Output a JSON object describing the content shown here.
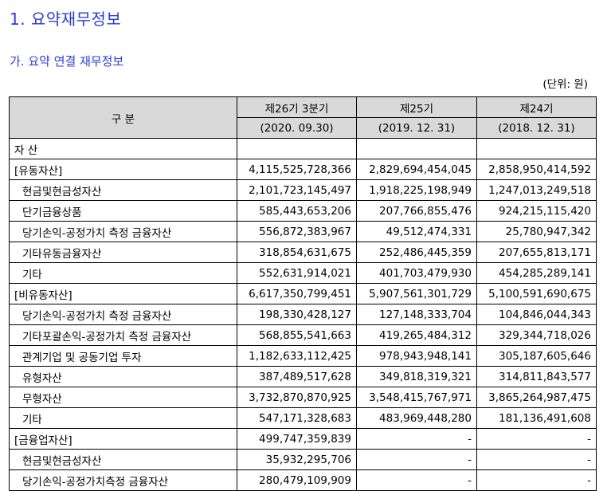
{
  "heading": "1. 요약재무정보",
  "subheading": "가. 요약 연결 재무정보",
  "unit": "(단위: 원)",
  "table": {
    "header_label": "구 분",
    "periods": [
      {
        "name": "제26기 3분기",
        "date": "(2020. 09.30)"
      },
      {
        "name": "제25기",
        "date": "(2019. 12. 31)"
      },
      {
        "name": "제24기",
        "date": "(2018. 12. 31)"
      }
    ],
    "rows": [
      {
        "label": "자 산",
        "values": [
          "",
          "",
          ""
        ],
        "level": 0
      },
      {
        "label": "[유동자산]",
        "values": [
          "4,115,525,728,366",
          "2,829,694,454,045",
          "2,858,950,414,592"
        ],
        "level": 0
      },
      {
        "label": "현금및현금성자산",
        "values": [
          "2,101,723,145,497",
          "1,918,225,198,949",
          "1,247,013,249,518"
        ],
        "level": 1
      },
      {
        "label": "단기금융상품",
        "values": [
          "585,443,653,206",
          "207,766,855,476",
          "924,215,115,420"
        ],
        "level": 1
      },
      {
        "label": "당기손익-공정가치 측정 금융자산",
        "values": [
          "556,872,383,967",
          "49,512,474,331",
          "25,780,947,342"
        ],
        "level": 1
      },
      {
        "label": "기타유동금융자산",
        "values": [
          "318,854,631,675",
          "252,486,445,359",
          "207,655,813,171"
        ],
        "level": 1
      },
      {
        "label": "기타",
        "values": [
          "552,631,914,021",
          "401,703,479,930",
          "454,285,289,141"
        ],
        "level": 1
      },
      {
        "label": "[비유동자산]",
        "values": [
          "6,617,350,799,451",
          "5,907,561,301,729",
          "5,100,591,690,675"
        ],
        "level": 0
      },
      {
        "label": "당기손익-공정가치 측정 금융자산",
        "values": [
          "198,330,428,127",
          "127,148,333,704",
          "104,846,044,343"
        ],
        "level": 1
      },
      {
        "label": "기타포괄손익-공정가치 측정 금융자산",
        "values": [
          "568,855,541,663",
          "419,265,484,312",
          "329,344,718,026"
        ],
        "level": 1
      },
      {
        "label": "관계기업 및 공동기업 투자",
        "values": [
          "1,182,633,112,425",
          "978,943,948,141",
          "305,187,605,646"
        ],
        "level": 1
      },
      {
        "label": "유형자산",
        "values": [
          "387,489,517,628",
          "349,818,319,321",
          "314,811,843,577"
        ],
        "level": 1
      },
      {
        "label": "무형자산",
        "values": [
          "3,732,870,870,925",
          "3,548,415,767,971",
          "3,865,264,987,475"
        ],
        "level": 1
      },
      {
        "label": "기타",
        "values": [
          "547,171,328,683",
          "483,969,448,280",
          "181,136,491,608"
        ],
        "level": 1
      },
      {
        "label": "[금융업자산]",
        "values": [
          "499,747,359,839",
          "-",
          "-"
        ],
        "level": 0
      },
      {
        "label": "현금및현금성자산",
        "values": [
          "35,932,295,706",
          "-",
          "-"
        ],
        "level": 1
      },
      {
        "label": "당기손익-공정가치측정 금융자산",
        "values": [
          "280,479,109,909",
          "-",
          "-"
        ],
        "level": 1
      }
    ]
  }
}
